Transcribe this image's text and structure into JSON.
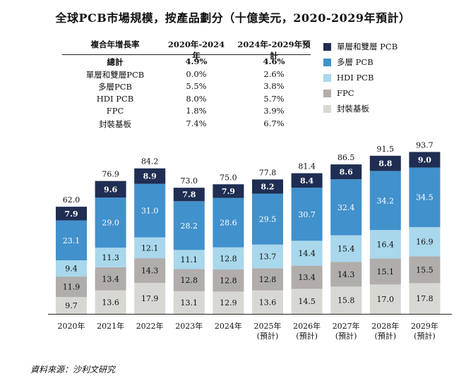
{
  "title": "全球PCB市場規模，按產品劃分（十億美元，2020-2029年預計）",
  "cagr_table": {
    "headers": [
      "複合年增長率",
      "2020年-2024年",
      "2024年-2029年預計"
    ],
    "rows": [
      {
        "label": "總計",
        "a": "4.9%",
        "b": "4.6%"
      },
      {
        "label": "單層和雙層PCB",
        "a": "0.0%",
        "b": "2.6%"
      },
      {
        "label": "多層PCB",
        "a": "5.5%",
        "b": "3.8%"
      },
      {
        "label": "HDI PCB",
        "a": "8.0%",
        "b": "5.7%"
      },
      {
        "label": "FPC",
        "a": "1.8%",
        "b": "3.9%"
      },
      {
        "label": "封裝基板",
        "a": "7.4%",
        "b": "6.7%"
      }
    ]
  },
  "legend": [
    {
      "label": "單層和雙層 PCB",
      "color": "#1f2e52"
    },
    {
      "label": "多層 PCB",
      "color": "#4191cc"
    },
    {
      "label": "HDI PCB",
      "color": "#a9d7ec"
    },
    {
      "label": "FPC",
      "color": "#b0adab"
    },
    {
      "label": "封裝基板",
      "color": "#d8d8d3"
    }
  ],
  "chart_data": {
    "type": "bar",
    "stacked": true,
    "categories": [
      "2020年",
      "2021年",
      "2022年",
      "2023年",
      "2024年",
      "2025年\n(預計)",
      "2026年\n(預計)",
      "2027年\n(預計)",
      "2028年\n(預計)",
      "2029年\n(預計)"
    ],
    "series": [
      {
        "name": "封裝基板",
        "color": "#d8d8d3",
        "text_color": "#111111",
        "values": [
          9.7,
          13.6,
          17.9,
          13.1,
          12.9,
          13.6,
          14.5,
          15.8,
          17.0,
          17.8
        ]
      },
      {
        "name": "FPC",
        "color": "#b0adab",
        "text_color": "#111111",
        "values": [
          11.9,
          13.4,
          14.3,
          12.8,
          12.8,
          12.8,
          13.4,
          14.3,
          15.1,
          15.5
        ]
      },
      {
        "name": "HDI PCB",
        "color": "#a9d7ec",
        "text_color": "#111111",
        "values": [
          9.4,
          11.3,
          12.1,
          11.1,
          12.8,
          13.7,
          14.4,
          15.4,
          16.4,
          16.9
        ]
      },
      {
        "name": "多層 PCB",
        "color": "#4191cc",
        "text_color": "#ffffff",
        "values": [
          23.1,
          29.0,
          31.0,
          28.2,
          28.6,
          29.5,
          30.7,
          32.4,
          34.2,
          34.5
        ]
      },
      {
        "name": "單層和雙層 PCB",
        "color": "#1f2e52",
        "text_color": "#ffffff",
        "values": [
          7.9,
          9.6,
          8.9,
          7.8,
          7.9,
          8.2,
          8.4,
          8.6,
          8.8,
          9.0
        ]
      }
    ],
    "totals": [
      62.0,
      76.9,
      84.2,
      73.0,
      75.0,
      77.8,
      81.4,
      86.5,
      91.5,
      93.7
    ],
    "value_labels": [
      [
        "9.7",
        "13.6",
        "17.9",
        "13.1",
        "12.9",
        "13.6",
        "14.5",
        "15.8",
        "17.0",
        "17.8"
      ],
      [
        "11.9",
        "13.4",
        "14.3",
        "12.8",
        "12.8",
        "12.8",
        "13.4",
        "14.3",
        "15.1",
        "15.5"
      ],
      [
        "9.4",
        "11.3",
        "12.1",
        "11.1",
        "12.8",
        "13.7",
        "14.4",
        "15.4",
        "16.4",
        "16.9"
      ],
      [
        "23.1",
        "29.0",
        "31.0",
        "28.2",
        "28.6",
        "29.5",
        "30.7",
        "32.4",
        "34.2",
        "34.5"
      ],
      [
        "7.9",
        "9.6",
        "8.9",
        "7.8",
        "7.9",
        "8.2",
        "8.4",
        "8.6",
        "8.8",
        "9.0"
      ]
    ],
    "total_labels": [
      "62.0",
      "76.9",
      "84.2",
      "73.0",
      "75.0",
      "77.8",
      "81.4",
      "86.5",
      "91.5",
      "93.7"
    ],
    "unit": "十億美元",
    "ylim": [
      0,
      100
    ],
    "grid": false
  },
  "source": "資料來源：沙利文研究"
}
